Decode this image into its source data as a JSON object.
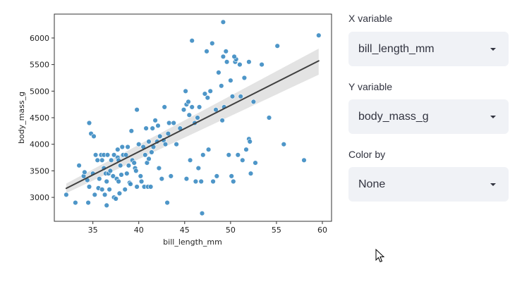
{
  "controls": {
    "x_variable": {
      "label": "X variable",
      "value": "bill_length_mm"
    },
    "y_variable": {
      "label": "Y variable",
      "value": "body_mass_g"
    },
    "color_by": {
      "label": "Color by",
      "value": "None"
    }
  },
  "colors": {
    "point": "#3b8bc2",
    "regression_line": "#404040",
    "ci_band": "#d9d9d9",
    "select_bg": "#f0f2f6",
    "text": "#31333f"
  },
  "chart_data": {
    "type": "scatter",
    "title": "",
    "xlabel": "bill_length_mm",
    "ylabel": "body_mass_g",
    "xlim": [
      30.8,
      61.0
    ],
    "ylim": [
      2550,
      6450
    ],
    "xticks": [
      35,
      40,
      45,
      50,
      55,
      60
    ],
    "yticks": [
      3000,
      3500,
      4000,
      4500,
      5000,
      5500,
      6000
    ],
    "grid": false,
    "legend": null,
    "regression": {
      "x": [
        32.1,
        59.6
      ],
      "y": [
        3170,
        5570
      ],
      "ci_lower_end": [
        3080,
        5310
      ],
      "ci_upper_end": [
        3260,
        5800
      ]
    },
    "points": [
      [
        32.1,
        3050
      ],
      [
        33.1,
        2900
      ],
      [
        33.5,
        3600
      ],
      [
        34.0,
        3400
      ],
      [
        34.1,
        3475
      ],
      [
        34.4,
        3325
      ],
      [
        34.5,
        2900
      ],
      [
        34.6,
        4400
      ],
      [
        34.6,
        3200
      ],
      [
        34.8,
        4200
      ],
      [
        35.0,
        3450
      ],
      [
        35.1,
        4150
      ],
      [
        35.2,
        3050
      ],
      [
        35.3,
        3800
      ],
      [
        35.5,
        3700
      ],
      [
        35.6,
        3175
      ],
      [
        35.7,
        3350
      ],
      [
        35.9,
        3800
      ],
      [
        36.0,
        3700
      ],
      [
        36.0,
        3150
      ],
      [
        36.2,
        3550
      ],
      [
        36.2,
        3800
      ],
      [
        36.3,
        3050
      ],
      [
        36.4,
        3450
      ],
      [
        36.5,
        3300
      ],
      [
        36.5,
        2850
      ],
      [
        36.6,
        3800
      ],
      [
        36.7,
        3450
      ],
      [
        36.8,
        3150
      ],
      [
        36.9,
        3500
      ],
      [
        37.0,
        3700
      ],
      [
        37.2,
        3400
      ],
      [
        37.3,
        3800
      ],
      [
        37.3,
        3000
      ],
      [
        37.5,
        2975
      ],
      [
        37.6,
        3350
      ],
      [
        37.7,
        3900
      ],
      [
        37.7,
        3750
      ],
      [
        37.8,
        3300
      ],
      [
        37.8,
        3700
      ],
      [
        37.9,
        3075
      ],
      [
        38.0,
        3600
      ],
      [
        38.1,
        3425
      ],
      [
        38.2,
        3950
      ],
      [
        38.3,
        3800
      ],
      [
        38.5,
        3150
      ],
      [
        38.6,
        3800
      ],
      [
        38.7,
        3450
      ],
      [
        38.8,
        3950
      ],
      [
        38.9,
        3600
      ],
      [
        39.0,
        3275
      ],
      [
        39.1,
        3250
      ],
      [
        39.2,
        4250
      ],
      [
        39.3,
        3700
      ],
      [
        39.5,
        3650
      ],
      [
        39.6,
        3550
      ],
      [
        39.7,
        3500
      ],
      [
        39.8,
        4650
      ],
      [
        39.8,
        3200
      ],
      [
        40.0,
        4000
      ],
      [
        40.2,
        3400
      ],
      [
        40.3,
        3300
      ],
      [
        40.5,
        3950
      ],
      [
        40.6,
        3200
      ],
      [
        40.7,
        3800
      ],
      [
        40.8,
        4300
      ],
      [
        40.9,
        3650
      ],
      [
        41.0,
        3200
      ],
      [
        41.1,
        4050
      ],
      [
        41.1,
        3725
      ],
      [
        41.3,
        3200
      ],
      [
        41.4,
        3850
      ],
      [
        41.5,
        4300
      ],
      [
        41.6,
        3950
      ],
      [
        41.8,
        4450
      ],
      [
        42.0,
        4050
      ],
      [
        42.1,
        4350
      ],
      [
        42.2,
        3550
      ],
      [
        42.3,
        4150
      ],
      [
        42.5,
        3350
      ],
      [
        42.7,
        4075
      ],
      [
        42.8,
        4700
      ],
      [
        42.9,
        4000
      ],
      [
        43.1,
        2900
      ],
      [
        43.2,
        4200
      ],
      [
        43.3,
        4400
      ],
      [
        43.5,
        3400
      ],
      [
        43.8,
        4400
      ],
      [
        44.1,
        4000
      ],
      [
        44.5,
        4300
      ],
      [
        44.9,
        4650
      ],
      [
        45.1,
        5000
      ],
      [
        45.2,
        4750
      ],
      [
        45.2,
        3350
      ],
      [
        45.4,
        4800
      ],
      [
        45.5,
        4550
      ],
      [
        45.6,
        3700
      ],
      [
        45.8,
        4700
      ],
      [
        45.8,
        5950
      ],
      [
        46.1,
        4400
      ],
      [
        46.2,
        3300
      ],
      [
        46.4,
        4500
      ],
      [
        46.5,
        3550
      ],
      [
        46.6,
        4700
      ],
      [
        46.8,
        3300
      ],
      [
        46.9,
        2700
      ],
      [
        47.0,
        3800
      ],
      [
        47.2,
        4950
      ],
      [
        47.5,
        4875
      ],
      [
        47.6,
        3900
      ],
      [
        47.8,
        5000
      ],
      [
        48.1,
        3300
      ],
      [
        48.4,
        4650
      ],
      [
        48.5,
        3400
      ],
      [
        48.7,
        5350
      ],
      [
        49.0,
        5100
      ],
      [
        49.1,
        4450
      ],
      [
        49.2,
        5650
      ],
      [
        49.3,
        4700
      ],
      [
        49.5,
        5750
      ],
      [
        49.6,
        5550
      ],
      [
        49.8,
        3800
      ],
      [
        50.0,
        5200
      ],
      [
        50.1,
        3400
      ],
      [
        50.2,
        4900
      ],
      [
        50.3,
        3300
      ],
      [
        50.5,
        5550
      ],
      [
        50.6,
        5600
      ],
      [
        50.8,
        3800
      ],
      [
        51.0,
        5500
      ],
      [
        51.1,
        4900
      ],
      [
        51.3,
        3700
      ],
      [
        51.5,
        5250
      ],
      [
        51.7,
        3900
      ],
      [
        52.0,
        5550
      ],
      [
        52.0,
        4100
      ],
      [
        52.1,
        4050
      ],
      [
        52.2,
        3450
      ],
      [
        52.5,
        4800
      ],
      [
        52.7,
        3650
      ],
      [
        53.4,
        5500
      ],
      [
        54.2,
        4500
      ],
      [
        55.1,
        5850
      ],
      [
        55.8,
        4000
      ],
      [
        58.0,
        3700
      ],
      [
        59.6,
        6050
      ],
      [
        49.2,
        6300
      ],
      [
        47.4,
        5750
      ],
      [
        48.0,
        5900
      ],
      [
        50.4,
        5650
      ]
    ]
  }
}
